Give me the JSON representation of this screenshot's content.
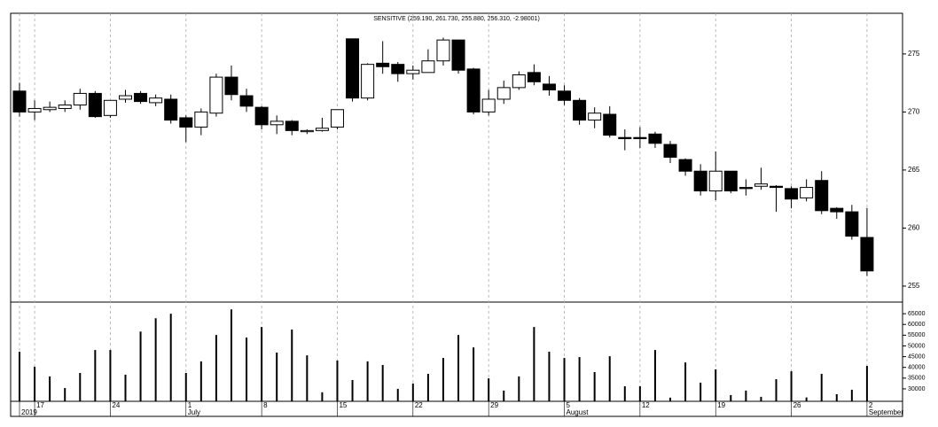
{
  "chart_data": [
    {
      "type": "candlestick",
      "title": "SENSITIVE (259.190, 261.730, 255.880, 256.310, -2.98001)",
      "categories": [
        null,
        "17",
        null,
        null,
        null,
        null,
        "24",
        null,
        null,
        null,
        null,
        "1",
        null,
        null,
        null,
        null,
        "8",
        null,
        null,
        null,
        null,
        "15",
        null,
        null,
        null,
        null,
        "22",
        null,
        null,
        null,
        null,
        "29",
        null,
        null,
        null,
        null,
        "5",
        null,
        null,
        null,
        null,
        "12",
        null,
        null,
        null,
        null,
        "19",
        null,
        null,
        null,
        null,
        "26",
        null,
        null,
        null,
        null,
        "2"
      ],
      "month_labels": [
        "2019",
        null,
        null,
        null,
        null,
        null,
        null,
        null,
        null,
        null,
        null,
        "July",
        null,
        null,
        null,
        null,
        null,
        null,
        null,
        null,
        null,
        null,
        null,
        null,
        null,
        null,
        null,
        null,
        null,
        null,
        null,
        null,
        null,
        null,
        null,
        null,
        "August",
        null,
        null,
        null,
        null,
        null,
        null,
        null,
        null,
        null,
        null,
        null,
        null,
        null,
        null,
        null,
        null,
        null,
        null,
        null,
        "September"
      ],
      "open": [
        271.8,
        270.0,
        270.2,
        270.3,
        270.6,
        271.6,
        269.7,
        271.1,
        271.6,
        270.8,
        271.1,
        269.5,
        268.7,
        269.9,
        273.0,
        271.4,
        270.4,
        268.9,
        269.2,
        268.3,
        268.4,
        268.7,
        276.3,
        271.2,
        274.2,
        274.1,
        273.3,
        273.4,
        274.4,
        276.2,
        273.7,
        270.0,
        271.1,
        272.1,
        273.4,
        272.4,
        271.8,
        271.0,
        269.3,
        269.8,
        267.8,
        267.8,
        268.1,
        267.2,
        265.9,
        264.9,
        263.2,
        264.9,
        263.5,
        263.6,
        263.6,
        263.4,
        262.6,
        264.1,
        261.7,
        261.4,
        259.19
      ],
      "high": [
        272.5,
        271.0,
        270.9,
        271.0,
        272.0,
        271.8,
        271.0,
        271.9,
        271.8,
        271.5,
        271.5,
        269.7,
        270.3,
        273.3,
        274.0,
        272.0,
        270.5,
        269.7,
        269.3,
        268.5,
        269.5,
        270.2,
        276.3,
        274.2,
        276.1,
        274.3,
        274.0,
        275.4,
        276.4,
        276.2,
        273.8,
        271.9,
        272.7,
        273.5,
        274.1,
        273.1,
        272.3,
        271.2,
        270.4,
        270.5,
        268.5,
        268.7,
        268.3,
        267.5,
        266.0,
        265.5,
        266.6,
        264.9,
        264.2,
        265.2,
        263.7,
        263.6,
        264.2,
        264.9,
        261.8,
        262.0,
        261.73
      ],
      "low": [
        269.6,
        269.3,
        270.0,
        270.0,
        270.2,
        269.5,
        269.5,
        270.8,
        270.7,
        270.5,
        269.0,
        267.4,
        268.0,
        269.6,
        271.0,
        270.0,
        268.5,
        268.1,
        268.0,
        268.1,
        268.3,
        268.5,
        270.9,
        271.0,
        273.3,
        272.6,
        272.8,
        273.4,
        274.0,
        273.3,
        269.8,
        269.7,
        270.7,
        271.9,
        272.3,
        271.4,
        270.6,
        268.9,
        268.6,
        267.8,
        266.7,
        266.9,
        266.9,
        265.6,
        264.5,
        262.8,
        262.4,
        263.0,
        262.8,
        263.3,
        261.4,
        261.7,
        262.3,
        261.2,
        260.8,
        259.0,
        255.88
      ],
      "close": [
        270.0,
        270.3,
        270.4,
        270.6,
        271.6,
        269.6,
        271.0,
        271.4,
        270.9,
        271.2,
        269.3,
        268.7,
        270.0,
        273.0,
        271.5,
        270.5,
        268.9,
        269.2,
        268.4,
        268.4,
        268.6,
        270.2,
        271.2,
        274.1,
        273.9,
        273.3,
        273.6,
        274.4,
        276.2,
        273.6,
        270.0,
        271.1,
        272.1,
        273.2,
        272.6,
        271.9,
        271.0,
        269.3,
        269.9,
        268.0,
        267.7,
        267.7,
        267.3,
        266.1,
        264.9,
        263.2,
        264.9,
        263.2,
        263.4,
        263.8,
        263.5,
        262.5,
        263.5,
        261.5,
        261.4,
        259.3,
        256.31
      ],
      "up_color": "#ffffff",
      "down_color": "#000000",
      "ylim": [
        253.7,
        278.5
      ],
      "yticks": [
        255,
        260,
        265,
        270,
        275
      ],
      "grid": true
    },
    {
      "type": "bar",
      "values": [
        47300,
        40300,
        35800,
        30400,
        37400,
        48100,
        48100,
        36600,
        56700,
        62900,
        65000,
        37400,
        42800,
        55100,
        67000,
        53900,
        58800,
        46900,
        57600,
        45600,
        28400,
        43200,
        34100,
        42800,
        41100,
        30000,
        32500,
        37000,
        44400,
        55100,
        49300,
        34900,
        29200,
        35800,
        58800,
        47300,
        44400,
        44800,
        37800,
        45200,
        31200,
        31200,
        48100,
        25900,
        42300,
        32900,
        39100,
        27100,
        29200,
        26300,
        34500,
        38200,
        26000,
        37000,
        27500,
        29600,
        40700
      ],
      "color": "#000000",
      "ylim": [
        24200,
        70000
      ],
      "yticks": [
        30000,
        35000,
        40000,
        45000,
        50000,
        55000,
        60000,
        65000
      ]
    }
  ]
}
